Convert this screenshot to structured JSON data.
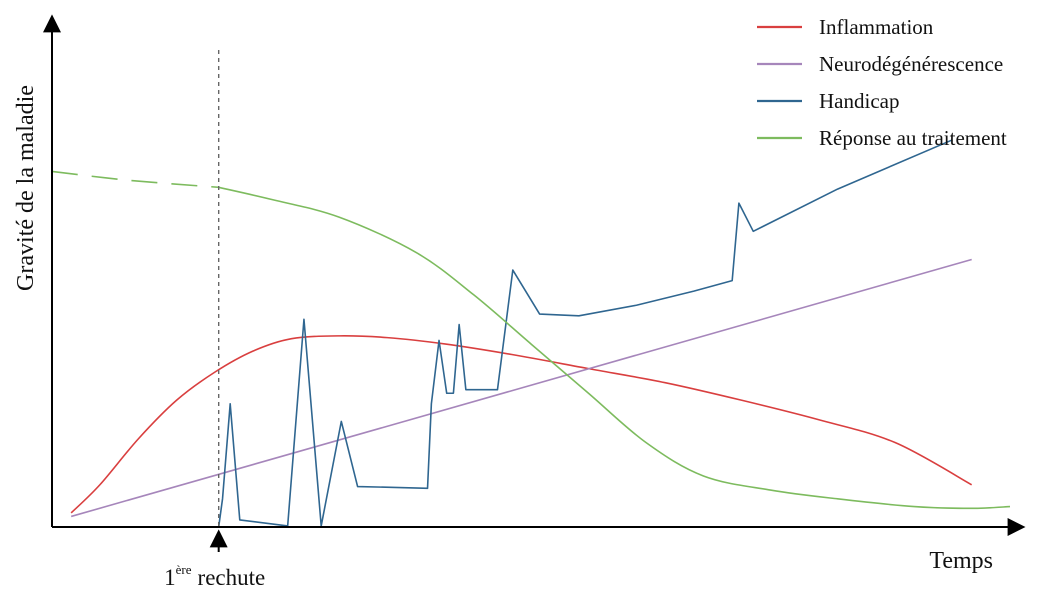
{
  "chart_data": {
    "type": "line",
    "ylabel": "Gravité de la maladie",
    "xlabel": "Temps",
    "marker": {
      "x": 17.4,
      "number": "1",
      "superscript": "ère",
      "text": "rechute"
    },
    "xlim": [
      0,
      100
    ],
    "ylim": [
      0,
      100
    ],
    "legend_position": "top-right",
    "series": [
      {
        "key": "inflammation",
        "name": "Inflammation",
        "color": "#d93f3f",
        "points": [
          [
            2,
            4
          ],
          [
            5,
            12
          ],
          [
            9,
            25
          ],
          [
            13,
            36
          ],
          [
            17,
            44
          ],
          [
            21,
            50
          ],
          [
            25,
            53.5
          ],
          [
            30,
            54.3
          ],
          [
            35,
            53.8
          ],
          [
            41,
            52
          ],
          [
            48,
            49
          ],
          [
            56,
            45
          ],
          [
            64,
            41
          ],
          [
            72,
            36
          ],
          [
            80,
            30.5
          ],
          [
            88,
            24
          ],
          [
            96,
            12
          ]
        ]
      },
      {
        "key": "neurodegenerescence",
        "name": "Neurodégénérescence",
        "color": "#a686bb",
        "points": [
          [
            2,
            3
          ],
          [
            96,
            76
          ]
        ]
      },
      {
        "key": "handicap",
        "name": "Handicap",
        "color": "#2f6690",
        "points": [
          [
            17.4,
            0
          ],
          [
            17.8,
            8
          ],
          [
            18.6,
            35
          ],
          [
            19.6,
            2
          ],
          [
            24.6,
            0.3
          ],
          [
            26.3,
            59
          ],
          [
            28.1,
            0.3
          ],
          [
            30.2,
            30
          ],
          [
            31.9,
            11.5
          ],
          [
            39.2,
            11
          ],
          [
            39.6,
            35
          ],
          [
            40.4,
            53
          ],
          [
            41.2,
            38
          ],
          [
            41.9,
            38
          ],
          [
            42.5,
            57.5
          ],
          [
            43.2,
            39
          ],
          [
            46.5,
            39
          ],
          [
            48.1,
            73
          ],
          [
            50.9,
            60.5
          ],
          [
            55,
            60
          ],
          [
            61,
            63
          ],
          [
            67,
            67
          ],
          [
            71,
            70
          ],
          [
            71.7,
            92
          ],
          [
            73.2,
            84
          ],
          [
            82,
            96
          ],
          [
            94,
            110
          ]
        ]
      },
      {
        "key": "reponse_traitement",
        "name": "Réponse au traitement",
        "color": "#7dbb5e",
        "dashed_until": 17.4,
        "points": [
          [
            0,
            101
          ],
          [
            8,
            98.5
          ],
          [
            17.4,
            96.5
          ],
          [
            23,
            93
          ],
          [
            30,
            88
          ],
          [
            38,
            78
          ],
          [
            44,
            66
          ],
          [
            50,
            52
          ],
          [
            56,
            38
          ],
          [
            62,
            24
          ],
          [
            68,
            14.5
          ],
          [
            75,
            10.5
          ],
          [
            82,
            8
          ],
          [
            90,
            5.8
          ],
          [
            96,
            5.3
          ],
          [
            100,
            5.8
          ]
        ]
      }
    ]
  }
}
